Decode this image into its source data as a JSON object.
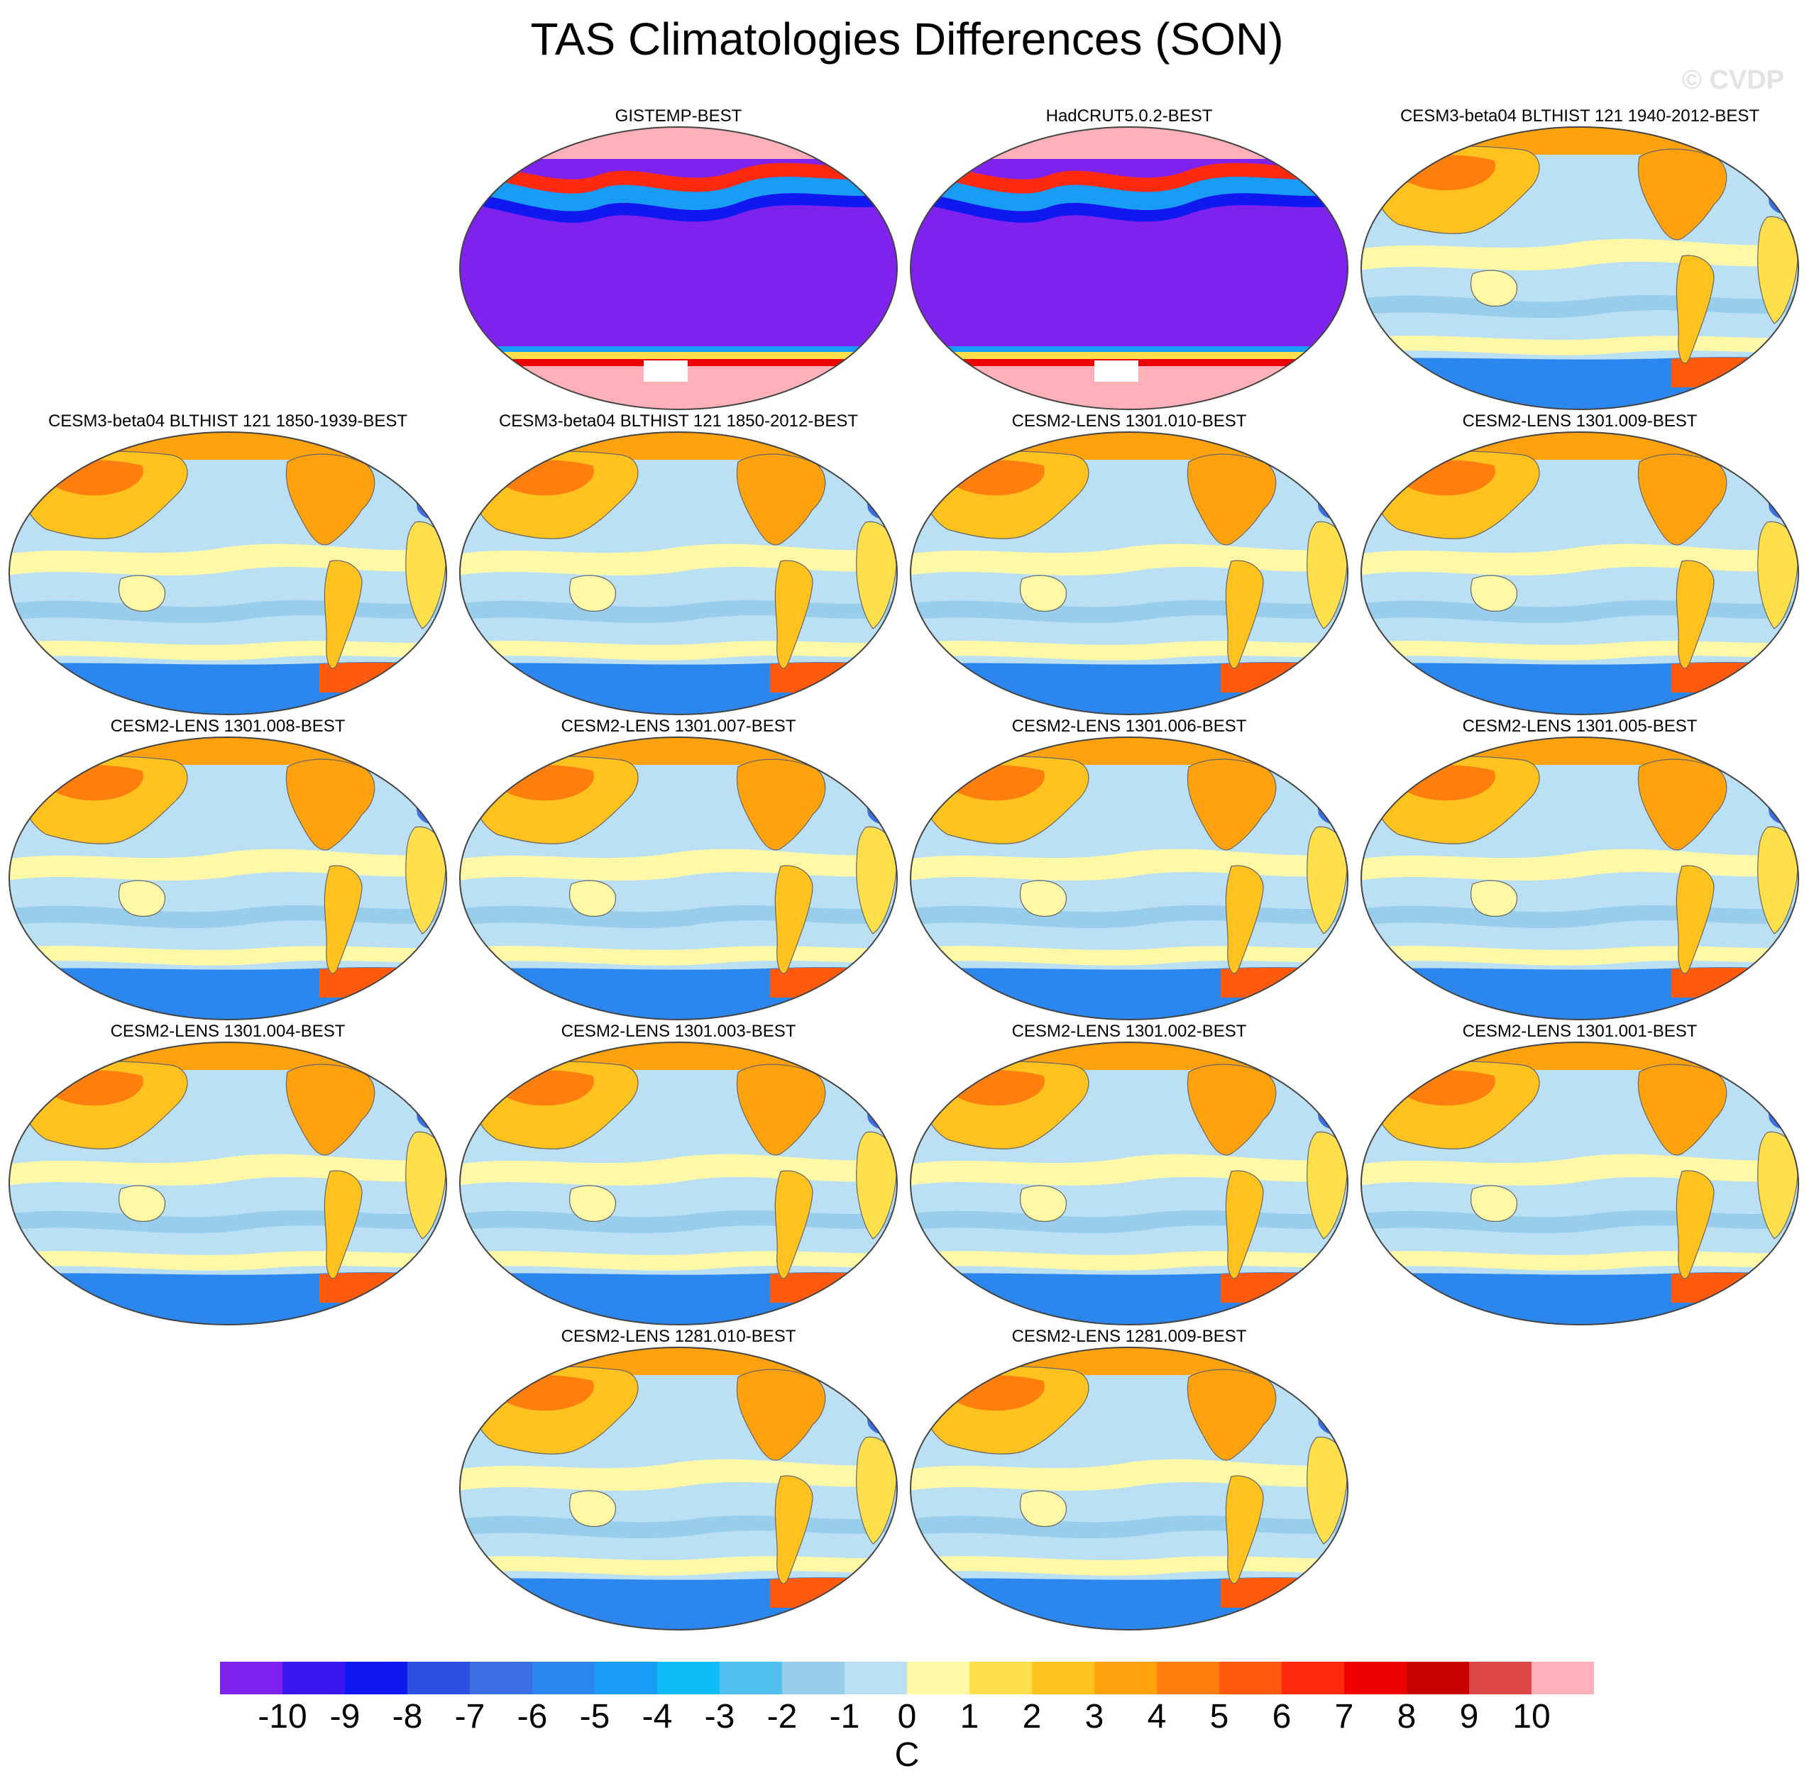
{
  "title": "TAS Climatologies Differences (SON)",
  "watermark": "© CVDP",
  "panels": [
    {
      "label": "GISTEMP-BEST",
      "style": "obs"
    },
    {
      "label": "HadCRUT5.0.2-BEST",
      "style": "obs"
    },
    {
      "label": "CESM3-beta04 BLTHIST 121 1940-2012-BEST",
      "style": "model"
    },
    {
      "label": "CESM3-beta04 BLTHIST 121 1850-1939-BEST",
      "style": "model"
    },
    {
      "label": "CESM3-beta04 BLTHIST 121 1850-2012-BEST",
      "style": "model"
    },
    {
      "label": "CESM2-LENS 1301.010-BEST",
      "style": "model"
    },
    {
      "label": "CESM2-LENS 1301.009-BEST",
      "style": "model"
    },
    {
      "label": "CESM2-LENS 1301.008-BEST",
      "style": "model"
    },
    {
      "label": "CESM2-LENS 1301.007-BEST",
      "style": "model"
    },
    {
      "label": "CESM2-LENS 1301.006-BEST",
      "style": "model"
    },
    {
      "label": "CESM2-LENS 1301.005-BEST",
      "style": "model"
    },
    {
      "label": "CESM2-LENS 1301.004-BEST",
      "style": "model"
    },
    {
      "label": "CESM2-LENS 1301.003-BEST",
      "style": "model"
    },
    {
      "label": "CESM2-LENS 1301.002-BEST",
      "style": "model"
    },
    {
      "label": "CESM2-LENS 1301.001-BEST",
      "style": "model"
    },
    {
      "label": "CESM2-LENS 1281.010-BEST",
      "style": "model"
    },
    {
      "label": "CESM2-LENS 1281.009-BEST",
      "style": "model"
    }
  ],
  "colorbar": {
    "unit": "C",
    "ticks": [
      "-10",
      "-9",
      "-8",
      "-7",
      "-6",
      "-5",
      "-4",
      "-3",
      "-2",
      "-1",
      "0",
      "1",
      "2",
      "3",
      "4",
      "5",
      "6",
      "7",
      "8",
      "9",
      "10"
    ],
    "colors": [
      "#7f22ee",
      "#3c16ee",
      "#0f18ee",
      "#2e50e2",
      "#3a6ee2",
      "#2b86ee",
      "#189cf6",
      "#0fbcf7",
      "#50c0f0",
      "#98cdec",
      "#bbe0f4",
      "#fff8a6",
      "#ffe04c",
      "#ffc21e",
      "#ffa20d",
      "#ff7f0e",
      "#ff5a0e",
      "#ff2a0e",
      "#ee0000",
      "#c80000",
      "#dc4646",
      "#ffb0b8"
    ]
  }
}
